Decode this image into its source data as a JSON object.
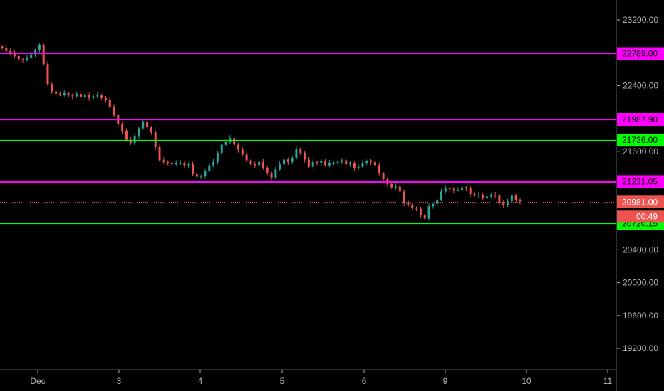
{
  "chart_data": {
    "type": "candlestick",
    "y_axis": {
      "ticks": [
        23200,
        22400,
        21600,
        20400,
        20000,
        19600,
        19200
      ],
      "tick_labels": [
        "23200.00",
        "22400.00",
        "21600.00",
        "20400.00",
        "20000.00",
        "19600.00",
        "19200.00"
      ],
      "range": [
        18950,
        23420
      ]
    },
    "x_axis": {
      "tick_labels": [
        "Dec",
        "3",
        "4",
        "5",
        "6",
        "9",
        "10",
        "11"
      ]
    },
    "horizontal_lines": [
      {
        "value": 22789.0,
        "label": "22789.00",
        "color": "#ff00ff"
      },
      {
        "value": 21987.9,
        "label": "21987.90",
        "color": "#ff00ff"
      },
      {
        "value": 21736.0,
        "label": "21736.00",
        "color": "#00ff00"
      },
      {
        "value": 21231.05,
        "label": "21231.05",
        "color": "#ff00ff"
      },
      {
        "value": 20720.15,
        "label": "20720.15",
        "color": "#00ff00"
      }
    ],
    "current_price": {
      "value": 20981.0,
      "label": "20981.00",
      "countdown": "00:49",
      "color": "#ef5350"
    },
    "colors": {
      "up": "#26a69a",
      "down": "#ef5350",
      "background": "#000000"
    },
    "candles_close": [
      22860,
      22820,
      22790,
      22760,
      22720,
      22710,
      22740,
      22780,
      22830,
      22890,
      22660,
      22420,
      22330,
      22300,
      22290,
      22310,
      22280,
      22270,
      22300,
      22260,
      22290,
      22250,
      22270,
      22280,
      22250,
      22230,
      22140,
      22040,
      21930,
      21850,
      21740,
      21700,
      21790,
      21880,
      21960,
      21890,
      21830,
      21650,
      21490,
      21470,
      21460,
      21440,
      21460,
      21460,
      21430,
      21440,
      21320,
      21290,
      21300,
      21360,
      21430,
      21470,
      21580,
      21680,
      21710,
      21760,
      21680,
      21620,
      21560,
      21490,
      21450,
      21430,
      21470,
      21400,
      21340,
      21280,
      21380,
      21440,
      21500,
      21470,
      21520,
      21630,
      21580,
      21500,
      21410,
      21470,
      21460,
      21480,
      21430,
      21460,
      21460,
      21470,
      21490,
      21440,
      21460,
      21400,
      21410,
      21460,
      21480,
      21470,
      21430,
      21330,
      21260,
      21200,
      21160,
      21170,
      21110,
      20970,
      20940,
      20910,
      20900,
      20820,
      20780,
      20930,
      20960,
      21010,
      21110,
      21150,
      21140,
      21130,
      21130,
      21160,
      21150,
      21080,
      21060,
      21070,
      21030,
      21050,
      21070,
      21060,
      20980,
      20940,
      20990,
      21060,
      21010,
      20990
    ]
  }
}
